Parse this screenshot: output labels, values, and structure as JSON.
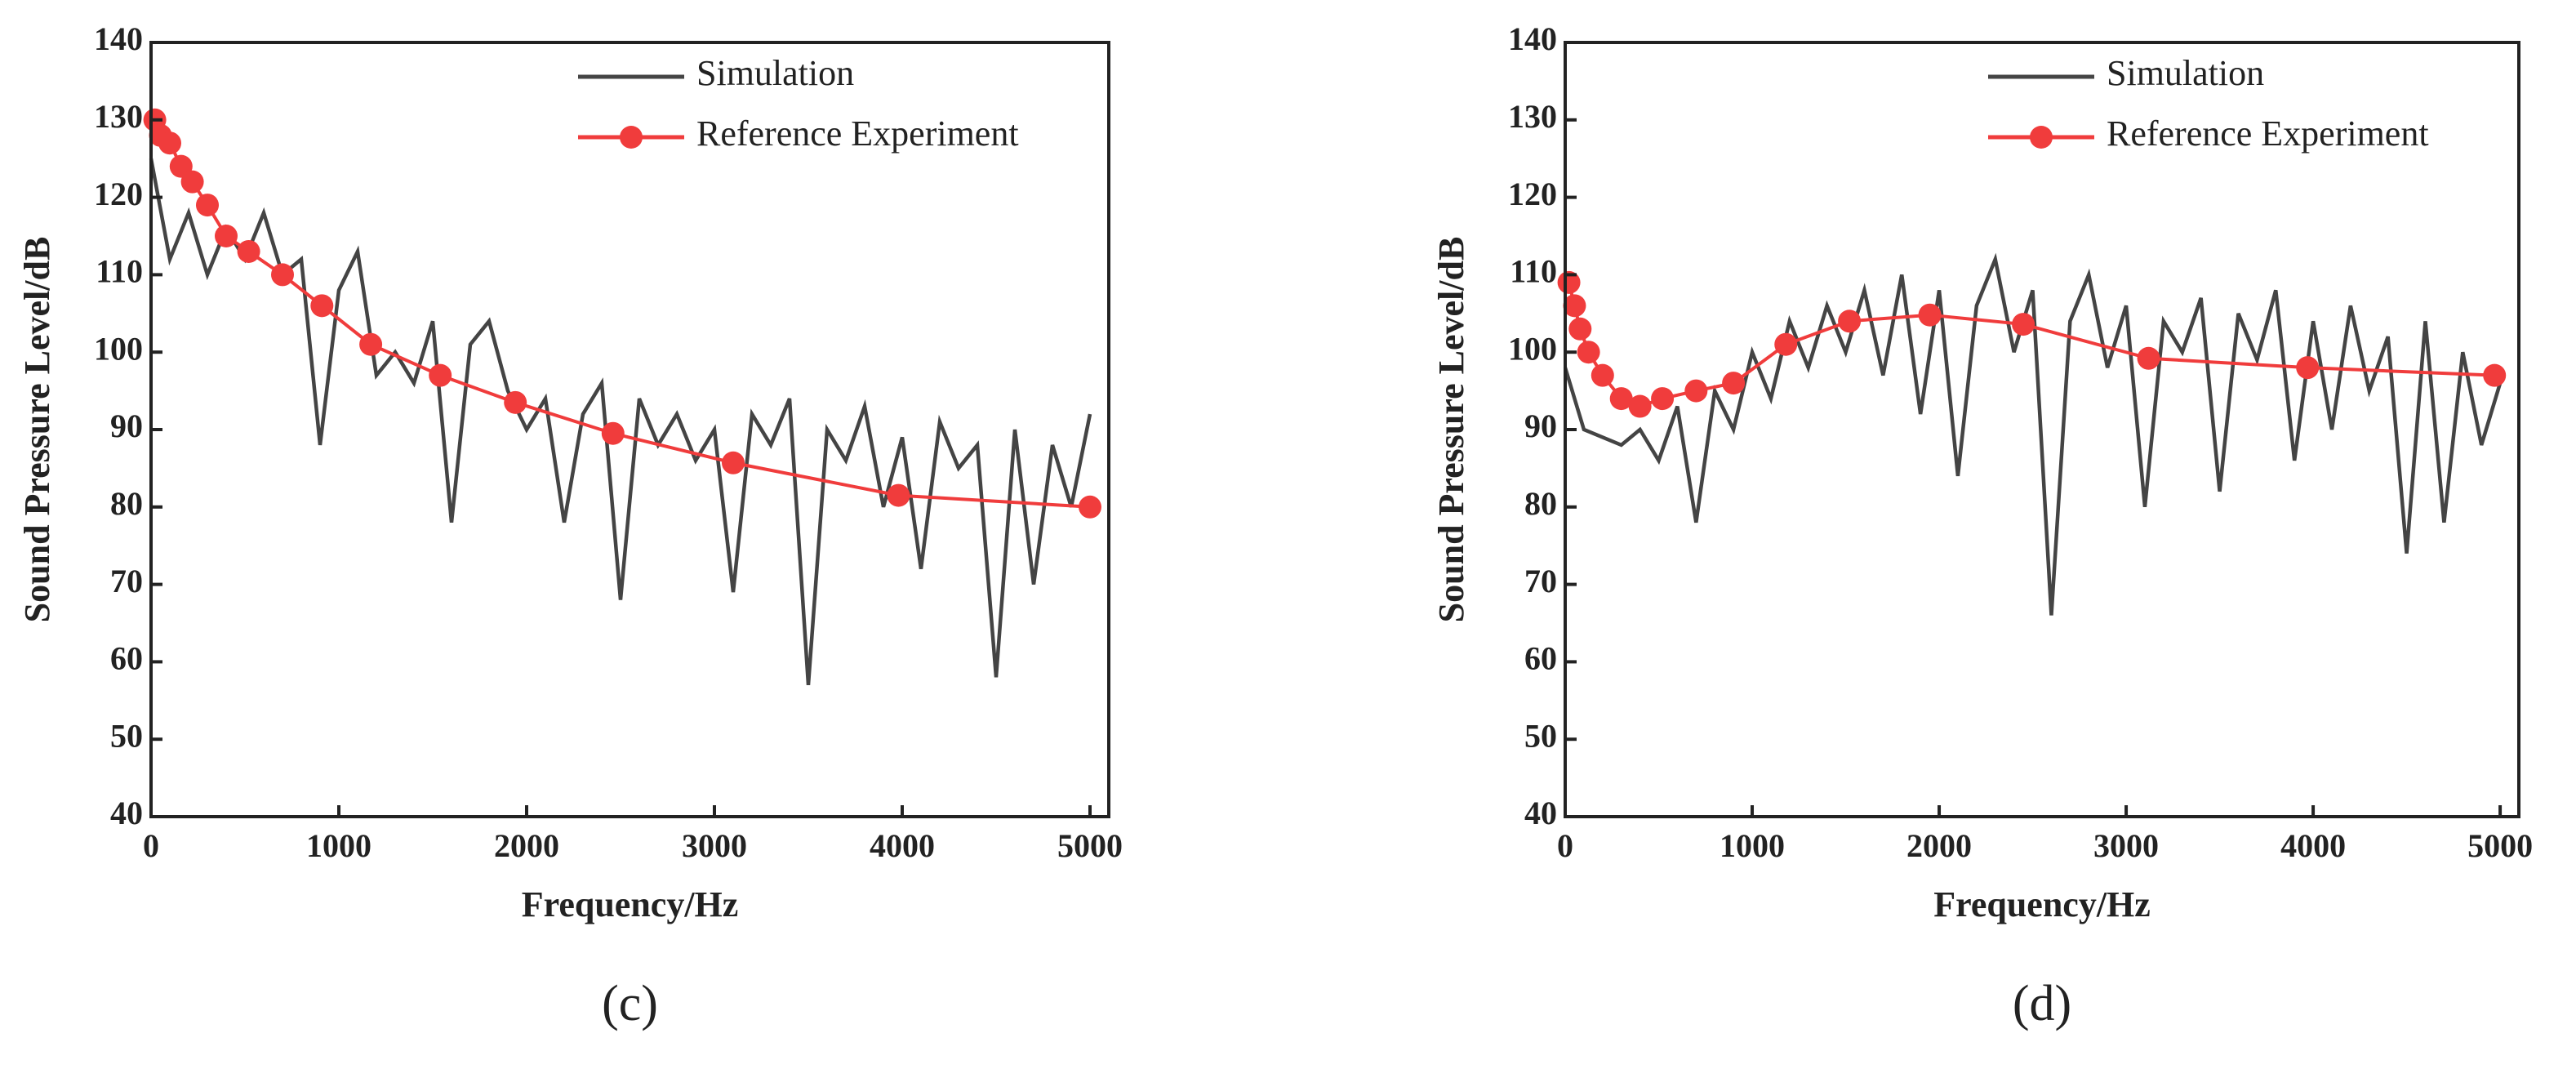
{
  "chart_data": [
    {
      "type": "line",
      "caption": "(c)",
      "x_label": "Frequency/Hz",
      "y_label": "Sound Pressure Level/dB",
      "xlim": [
        0,
        5100
      ],
      "ylim": [
        40,
        140
      ],
      "xticks": [
        0,
        1000,
        2000,
        3000,
        4000,
        5000
      ],
      "yticks": [
        40,
        50,
        60,
        70,
        80,
        90,
        100,
        110,
        120,
        130,
        140
      ],
      "legend": "upper right",
      "series": [
        {
          "name": "Simulation",
          "color": "#444444",
          "marker": false,
          "x": [
            0,
            100,
            200,
            300,
            400,
            500,
            600,
            700,
            800,
            900,
            1000,
            1100,
            1200,
            1300,
            1400,
            1500,
            1600,
            1700,
            1800,
            1900,
            2000,
            2100,
            2200,
            2300,
            2400,
            2500,
            2600,
            2700,
            2800,
            2900,
            3000,
            3100,
            3200,
            3300,
            3400,
            3500,
            3600,
            3700,
            3800,
            3900,
            4000,
            4100,
            4200,
            4300,
            4400,
            4500,
            4600,
            4700,
            4800,
            4900,
            5000
          ],
          "values": [
            125,
            112,
            118,
            110,
            116,
            112,
            118,
            110,
            112,
            88,
            108,
            113,
            97,
            100,
            96,
            104,
            78,
            101,
            104,
            95,
            90,
            94,
            78,
            92,
            96,
            68,
            94,
            88,
            92,
            86,
            90,
            69,
            92,
            88,
            94,
            57,
            90,
            86,
            93,
            80,
            89,
            72,
            91,
            85,
            88,
            58,
            90,
            70,
            88,
            80,
            92
          ]
        },
        {
          "name": "Reference Experiment",
          "color": "#f03c3c",
          "marker": true,
          "x": [
            20,
            50,
            100,
            160,
            220,
            300,
            400,
            520,
            700,
            910,
            1170,
            1540,
            1940,
            2460,
            3100,
            3980,
            5000
          ],
          "values": [
            130,
            128,
            127,
            124,
            122,
            119,
            115,
            113,
            110,
            106,
            101,
            97,
            93.5,
            89.5,
            85.7,
            81.5,
            80
          ]
        }
      ]
    },
    {
      "type": "line",
      "caption": "(d)",
      "x_label": "Frequency/Hz",
      "y_label": "Sound Pressure Level/dB",
      "xlim": [
        0,
        5100
      ],
      "ylim": [
        40,
        140
      ],
      "xticks": [
        0,
        1000,
        2000,
        3000,
        4000,
        5000
      ],
      "yticks": [
        40,
        50,
        60,
        70,
        80,
        90,
        100,
        110,
        120,
        130,
        140
      ],
      "legend": "upper right",
      "series": [
        {
          "name": "Simulation",
          "color": "#444444",
          "marker": false,
          "x": [
            0,
            100,
            200,
            300,
            400,
            500,
            600,
            700,
            800,
            900,
            1000,
            1100,
            1200,
            1300,
            1400,
            1500,
            1600,
            1700,
            1800,
            1900,
            2000,
            2100,
            2200,
            2300,
            2400,
            2500,
            2600,
            2700,
            2800,
            2900,
            3000,
            3100,
            3200,
            3300,
            3400,
            3500,
            3600,
            3700,
            3800,
            3900,
            4000,
            4100,
            4200,
            4300,
            4400,
            4500,
            4600,
            4700,
            4800,
            4900,
            5000
          ],
          "values": [
            98,
            90,
            89,
            88,
            90,
            86,
            93,
            78,
            95,
            90,
            100,
            94,
            104,
            98,
            106,
            100,
            108,
            97,
            110,
            92,
            108,
            84,
            106,
            112,
            100,
            108,
            66,
            104,
            110,
            98,
            106,
            80,
            104,
            100,
            107,
            82,
            105,
            99,
            108,
            86,
            104,
            90,
            106,
            95,
            102,
            74,
            104,
            78,
            100,
            88,
            96
          ]
        },
        {
          "name": "Reference Experiment",
          "color": "#f03c3c",
          "marker": true,
          "x": [
            20,
            50,
            80,
            125,
            200,
            300,
            400,
            520,
            700,
            900,
            1180,
            1520,
            1950,
            2450,
            3120,
            3970,
            4970
          ],
          "values": [
            109,
            106,
            103,
            100,
            97,
            94,
            93,
            94,
            95,
            96,
            101,
            104,
            104.8,
            103.6,
            99.2,
            98,
            97
          ]
        }
      ]
    }
  ]
}
